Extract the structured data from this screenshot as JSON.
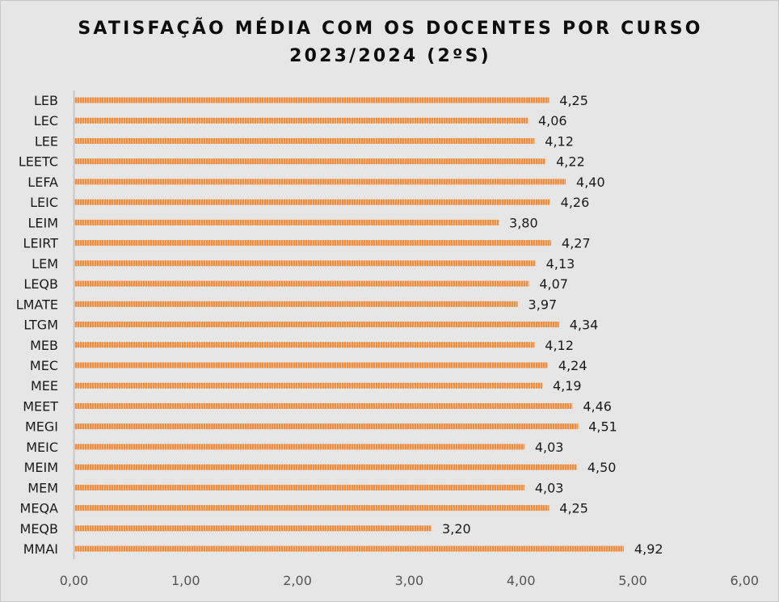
{
  "chart_data": {
    "type": "bar",
    "orientation": "horizontal",
    "title_line1": "SATISFAÇÃO MÉDIA COM OS DOCENTES POR CURSO",
    "title_line2": "2023/2024 (2ºS)",
    "categories": [
      "LEB",
      "LEC",
      "LEE",
      "LEETC",
      "LEFA",
      "LEIC",
      "LEIM",
      "LEIRT",
      "LEM",
      "LEQB",
      "LMATE",
      "LTGM",
      "MEB",
      "MEC",
      "MEE",
      "MEET",
      "MEGI",
      "MEIC",
      "MEIM",
      "MEM",
      "MEQA",
      "MEQB",
      "MMAI"
    ],
    "values": [
      4.25,
      4.06,
      4.12,
      4.22,
      4.4,
      4.26,
      3.8,
      4.27,
      4.13,
      4.07,
      3.97,
      4.34,
      4.12,
      4.24,
      4.19,
      4.46,
      4.51,
      4.03,
      4.5,
      4.03,
      4.25,
      3.2,
      4.92
    ],
    "value_labels": [
      "4,25",
      "4,06",
      "4,12",
      "4,22",
      "4,40",
      "4,26",
      "3,80",
      "4,27",
      "4,13",
      "4,07",
      "3,97",
      "4,34",
      "4,12",
      "4,24",
      "4,19",
      "4,46",
      "4,51",
      "4,03",
      "4,50",
      "4,03",
      "4,25",
      "3,20",
      "4,92"
    ],
    "xlim": [
      0,
      6
    ],
    "x_ticks": [
      0,
      1,
      2,
      3,
      4,
      5,
      6
    ],
    "x_tick_labels": [
      "0,00",
      "1,00",
      "2,00",
      "3,00",
      "4,00",
      "5,00",
      "6,00"
    ],
    "grid": false,
    "legend": "none",
    "bar_color": "#f08a3c",
    "bar_stripe_color": "#f7c39a",
    "axis_color": "#bfbfbf",
    "background": "#e6e6e6"
  }
}
